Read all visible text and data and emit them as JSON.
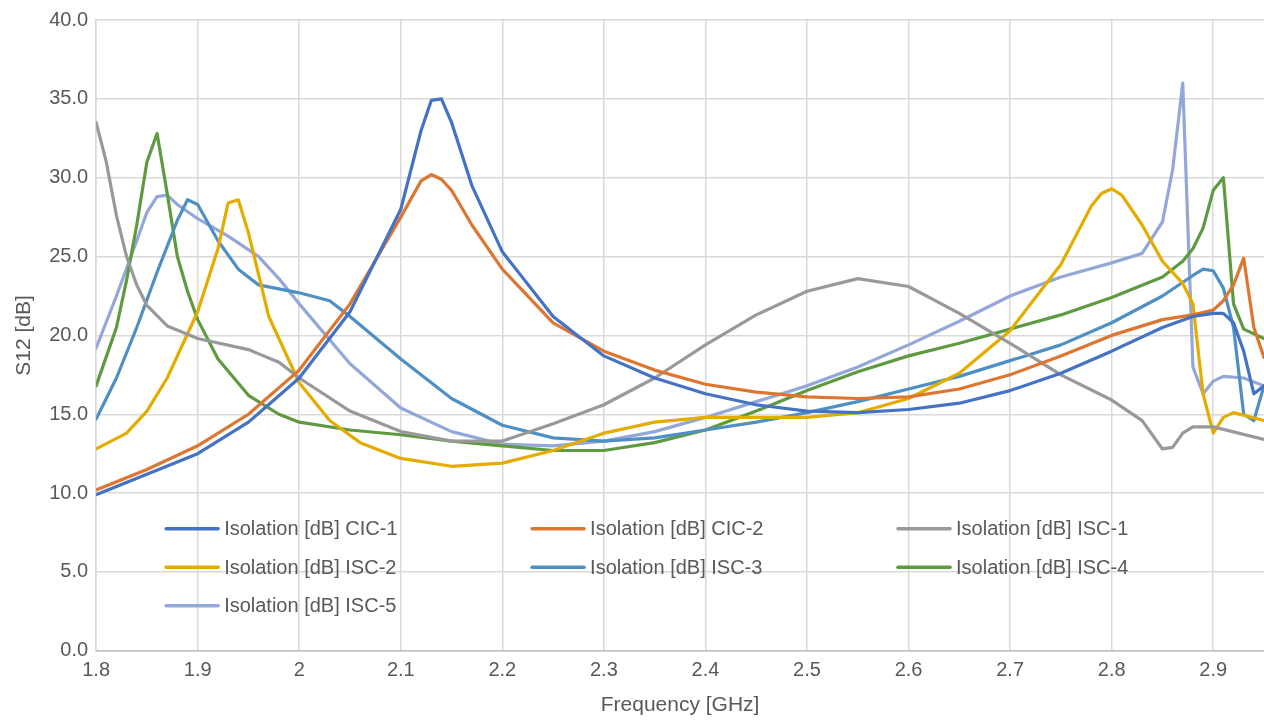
{
  "chart_data": {
    "type": "line",
    "xlabel": "Frequency [GHz]",
    "ylabel": "S12 [dB]",
    "xlim": [
      1.8,
      2.95
    ],
    "ylim": [
      0,
      40
    ],
    "xticks": [
      1.8,
      1.9,
      2,
      2.1,
      2.2,
      2.3,
      2.4,
      2.5,
      2.6,
      2.7,
      2.8,
      2.9
    ],
    "yticks": [
      {
        "value": 0,
        "label": "0.0"
      },
      {
        "value": 5,
        "label": "5.0"
      },
      {
        "value": 10,
        "label": "10.0"
      },
      {
        "value": 15,
        "label": "15.0"
      },
      {
        "value": 20,
        "label": "20.0"
      },
      {
        "value": 25,
        "label": "25.0"
      },
      {
        "value": 30,
        "label": "30.0"
      },
      {
        "value": 35,
        "label": "35.0"
      },
      {
        "value": 40,
        "label": "40.0"
      }
    ],
    "grid": true,
    "legend": "bottom",
    "marker": "none",
    "line_style": "solid",
    "series": [
      {
        "name": "Isolation [dB] CIC-1",
        "color": "#4472c4",
        "x": [
          1.8,
          1.85,
          1.9,
          1.95,
          2.0,
          2.05,
          2.1,
          2.12,
          2.13,
          2.14,
          2.15,
          2.17,
          2.2,
          2.25,
          2.3,
          2.35,
          2.4,
          2.45,
          2.5,
          2.55,
          2.6,
          2.65,
          2.7,
          2.75,
          2.8,
          2.85,
          2.88,
          2.9,
          2.91,
          2.92,
          2.93,
          2.94,
          2.95
        ],
        "values": [
          9.9,
          11.2,
          12.5,
          14.5,
          17.3,
          21.5,
          28,
          33,
          34.9,
          35,
          33.5,
          29.5,
          25.3,
          21.2,
          18.7,
          17.3,
          16.3,
          15.6,
          15.2,
          15.1,
          15.3,
          15.7,
          16.5,
          17.6,
          19,
          20.5,
          21.2,
          21.4,
          21.4,
          20.8,
          19,
          16.3,
          16.8
        ]
      },
      {
        "name": "Isolation [dB] CIC-2",
        "color": "#dd7631",
        "x": [
          1.8,
          1.85,
          1.9,
          1.95,
          2.0,
          2.05,
          2.1,
          2.12,
          2.13,
          2.14,
          2.15,
          2.17,
          2.2,
          2.25,
          2.3,
          2.35,
          2.4,
          2.45,
          2.5,
          2.55,
          2.6,
          2.65,
          2.7,
          2.75,
          2.8,
          2.85,
          2.88,
          2.9,
          2.91,
          2.92,
          2.93,
          2.94,
          2.95
        ],
        "values": [
          10.2,
          11.5,
          13,
          15,
          17.8,
          22,
          27.5,
          29.8,
          30.2,
          29.9,
          29.2,
          27,
          24.2,
          20.8,
          19,
          17.8,
          16.9,
          16.4,
          16.1,
          16,
          16.1,
          16.6,
          17.5,
          18.7,
          20,
          21,
          21.3,
          21.6,
          22.2,
          23.2,
          24.9,
          20.5,
          18.6
        ]
      },
      {
        "name": "Isolation [dB] ISC-1",
        "color": "#999999",
        "x": [
          1.8,
          1.81,
          1.82,
          1.83,
          1.84,
          1.85,
          1.87,
          1.9,
          1.95,
          1.98,
          2.0,
          2.05,
          2.1,
          2.15,
          2.2,
          2.25,
          2.3,
          2.35,
          2.4,
          2.45,
          2.5,
          2.55,
          2.6,
          2.65,
          2.7,
          2.75,
          2.8,
          2.83,
          2.85,
          2.86,
          2.87,
          2.88,
          2.9,
          2.95
        ],
        "values": [
          33.5,
          31,
          27.6,
          25,
          23.2,
          21.9,
          20.6,
          19.8,
          19.1,
          18.3,
          17.3,
          15.2,
          13.9,
          13.3,
          13.3,
          14.4,
          15.6,
          17.3,
          19.4,
          21.3,
          22.8,
          23.6,
          23.1,
          21.4,
          19.5,
          17.5,
          15.9,
          14.6,
          12.8,
          12.9,
          13.8,
          14.2,
          14.2,
          13.4
        ]
      },
      {
        "name": "Isolation [dB] ISC-2",
        "color": "#e5ac00",
        "x": [
          1.8,
          1.83,
          1.85,
          1.87,
          1.9,
          1.92,
          1.93,
          1.94,
          1.95,
          1.97,
          2.0,
          2.03,
          2.06,
          2.1,
          2.15,
          2.2,
          2.25,
          2.3,
          2.35,
          2.4,
          2.45,
          2.5,
          2.55,
          2.6,
          2.65,
          2.7,
          2.75,
          2.78,
          2.79,
          2.8,
          2.81,
          2.83,
          2.85,
          2.87,
          2.88,
          2.89,
          2.9,
          2.91,
          2.92,
          2.95
        ],
        "values": [
          12.8,
          13.8,
          15.2,
          17.3,
          21.5,
          25.5,
          28.4,
          28.6,
          26.5,
          21.2,
          17,
          14.6,
          13.2,
          12.2,
          11.7,
          11.9,
          12.7,
          13.8,
          14.5,
          14.8,
          14.8,
          14.8,
          15.1,
          16,
          17.6,
          20.3,
          24.5,
          28.2,
          29,
          29.3,
          28.9,
          27,
          24.7,
          23.3,
          22,
          16.3,
          13.8,
          14.8,
          15.1,
          14.6
        ]
      },
      {
        "name": "Isolation [dB] ISC-3",
        "color": "#4e8fc4",
        "x": [
          1.8,
          1.82,
          1.84,
          1.86,
          1.88,
          1.89,
          1.9,
          1.92,
          1.94,
          1.96,
          2.0,
          2.03,
          2.05,
          2.1,
          2.15,
          2.2,
          2.25,
          2.3,
          2.35,
          2.4,
          2.45,
          2.5,
          2.55,
          2.6,
          2.65,
          2.7,
          2.75,
          2.8,
          2.85,
          2.88,
          2.89,
          2.9,
          2.91,
          2.92,
          2.93,
          2.94,
          2.95
        ],
        "values": [
          14.7,
          17.3,
          20.5,
          24,
          27.3,
          28.6,
          28.3,
          26,
          24.2,
          23.2,
          22.7,
          22.2,
          21.2,
          18.5,
          16,
          14.3,
          13.5,
          13.3,
          13.5,
          14,
          14.5,
          15.1,
          15.8,
          16.6,
          17.4,
          18.4,
          19.4,
          20.8,
          22.5,
          23.8,
          24.2,
          24.1,
          23,
          20.5,
          15,
          14.6,
          16.8
        ]
      },
      {
        "name": "Isolation [dB] ISC-4",
        "color": "#5e9a3f",
        "x": [
          1.8,
          1.82,
          1.83,
          1.84,
          1.85,
          1.86,
          1.87,
          1.88,
          1.89,
          1.9,
          1.92,
          1.95,
          1.98,
          2.0,
          2.05,
          2.1,
          2.15,
          2.2,
          2.25,
          2.3,
          2.35,
          2.4,
          2.45,
          2.5,
          2.55,
          2.6,
          2.65,
          2.7,
          2.75,
          2.8,
          2.85,
          2.87,
          2.88,
          2.89,
          2.9,
          2.91,
          2.92,
          2.93,
          2.95
        ],
        "values": [
          16.8,
          20.5,
          23.5,
          27,
          31,
          32.8,
          29,
          25,
          22.8,
          21,
          18.5,
          16.2,
          15,
          14.5,
          14,
          13.7,
          13.3,
          13,
          12.7,
          12.7,
          13.2,
          14,
          15.2,
          16.5,
          17.7,
          18.7,
          19.5,
          20.4,
          21.3,
          22.4,
          23.7,
          24.7,
          25.5,
          26.8,
          29.2,
          30,
          22,
          20.4,
          19.8
        ]
      },
      {
        "name": "Isolation [dB] ISC-5",
        "color": "#93a8d8",
        "x": [
          1.8,
          1.82,
          1.84,
          1.85,
          1.86,
          1.87,
          1.88,
          1.9,
          1.93,
          1.96,
          1.98,
          2.0,
          2.05,
          2.1,
          2.15,
          2.2,
          2.25,
          2.3,
          2.35,
          2.4,
          2.45,
          2.5,
          2.55,
          2.6,
          2.65,
          2.7,
          2.75,
          2.8,
          2.83,
          2.85,
          2.86,
          2.87,
          2.88,
          2.89,
          2.9,
          2.91,
          2.93,
          2.95
        ],
        "values": [
          19.2,
          22.5,
          26,
          27.8,
          28.8,
          28.9,
          28.3,
          27.4,
          26.3,
          25,
          23.6,
          22,
          18.2,
          15.4,
          13.9,
          13.1,
          13,
          13.3,
          13.9,
          14.8,
          15.8,
          16.8,
          18,
          19.4,
          20.9,
          22.5,
          23.7,
          24.6,
          25.2,
          27.2,
          30.5,
          36,
          18,
          16.3,
          17.1,
          17.4,
          17.3,
          16.8
        ]
      }
    ]
  }
}
